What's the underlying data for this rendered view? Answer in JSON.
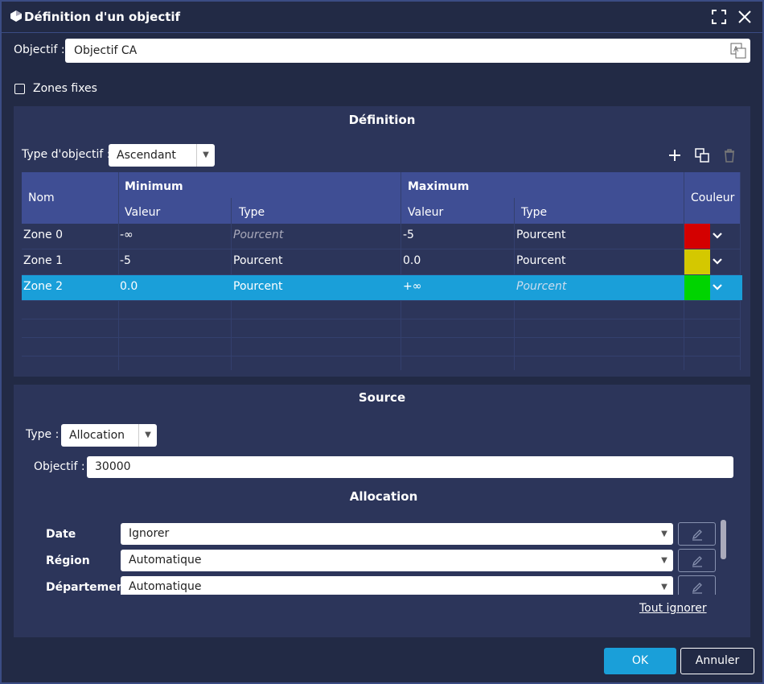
{
  "dialog": {
    "title": "Définition d'un objectif"
  },
  "objective": {
    "label": "Objectif :",
    "value": "Objectif CA"
  },
  "fixed_zones": {
    "label": "Zones fixes"
  },
  "definition": {
    "title": "Définition",
    "type_label": "Type d'objectif :",
    "type_value": "Ascendant",
    "table": {
      "headers": {
        "name": "Nom",
        "minimum": "Minimum",
        "maximum": "Maximum",
        "min_value": "Valeur",
        "min_type": "Type",
        "max_value": "Valeur",
        "max_type": "Type",
        "color": "Couleur"
      },
      "rows": [
        {
          "name": "Zone 0",
          "min_value": "-∞",
          "min_type": "Pourcent",
          "max_value": "-5",
          "max_type": "Pourcent",
          "color": "#d40000"
        },
        {
          "name": "Zone 1",
          "min_value": "-5",
          "min_type": "Pourcent",
          "max_value": "0.0",
          "max_type": "Pourcent",
          "color": "#d4c800"
        },
        {
          "name": "Zone 2",
          "min_value": "0.0",
          "min_type": "Pourcent",
          "max_value": "+∞",
          "max_type": "Pourcent",
          "color": "#00d400"
        }
      ]
    }
  },
  "source": {
    "title": "Source",
    "type_label": "Type :",
    "type_value": "Allocation",
    "objective_label": "Objectif :",
    "objective_value": "30000",
    "allocation": {
      "title": "Allocation",
      "rows": [
        {
          "label": "Date",
          "value": "Ignorer"
        },
        {
          "label": "Région",
          "value": "Automatique"
        },
        {
          "label": "Département",
          "value": "Automatique"
        }
      ],
      "ignore_all": "Tout ignorer"
    }
  },
  "buttons": {
    "ok": "OK",
    "cancel": "Annuler"
  }
}
